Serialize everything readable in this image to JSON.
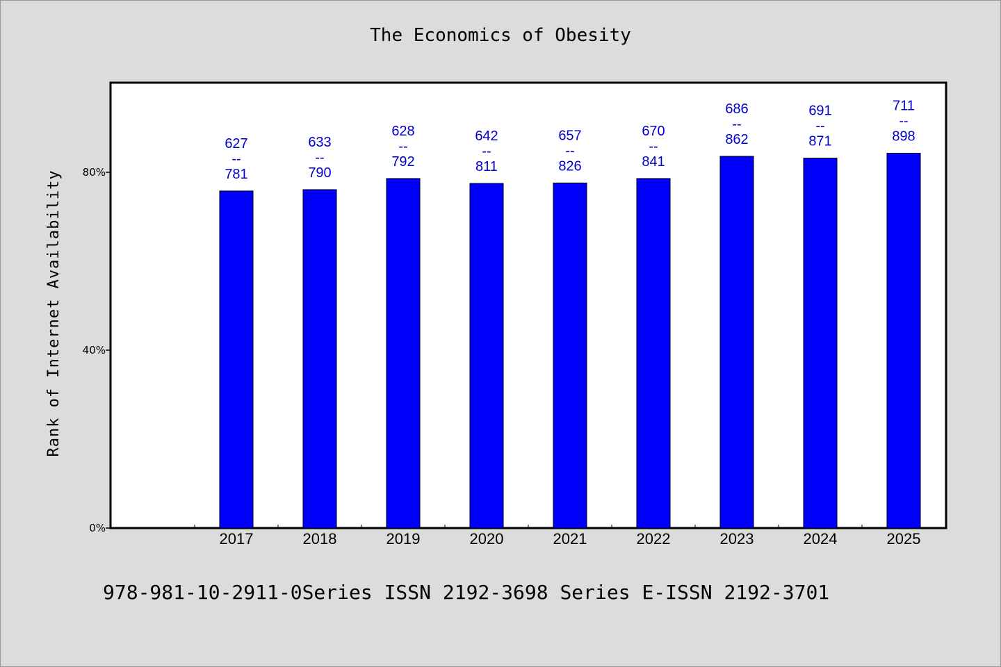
{
  "chart_data": {
    "type": "bar",
    "title": "The Economics of Obesity",
    "xlabel": "",
    "ylabel": "Rank of Internet Availability",
    "categories": [
      "2017",
      "2018",
      "2019",
      "2020",
      "2021",
      "2022",
      "2023",
      "2024",
      "2025"
    ],
    "values": [
      0.758,
      0.761,
      0.786,
      0.775,
      0.776,
      0.786,
      0.836,
      0.832,
      0.843
    ],
    "data_labels": [
      [
        "627",
        "--",
        "781"
      ],
      [
        "633",
        "--",
        "790"
      ],
      [
        "628",
        "--",
        "792"
      ],
      [
        "642",
        "--",
        "811"
      ],
      [
        "657",
        "--",
        "826"
      ],
      [
        "670",
        "--",
        "841"
      ],
      [
        "686",
        "--",
        "862"
      ],
      [
        "691",
        "--",
        "871"
      ],
      [
        "711",
        "--",
        "898"
      ]
    ],
    "yticks": [
      0,
      0.4,
      0.8
    ],
    "ytick_labels": [
      "0%",
      "40%",
      "80%"
    ],
    "ylim": [
      0,
      1.0
    ],
    "grid": false,
    "legend": "none",
    "bar_color": "#0000ff",
    "label_color": "#0000cc"
  },
  "footer": {
    "text": "978-981-10-2911-0Series ISSN 2192-3698 Series E-ISSN 2192-3701"
  }
}
